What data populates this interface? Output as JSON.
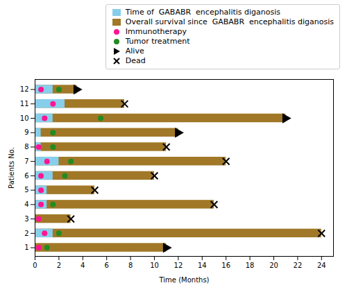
{
  "chart_data": {
    "type": "bar",
    "orientation": "horizontal",
    "xlabel": "Time (Months)",
    "ylabel": "Patients No.",
    "y": [
      1,
      2,
      3,
      4,
      5,
      6,
      7,
      8,
      9,
      10,
      11,
      12
    ],
    "xlim": [
      0,
      25
    ],
    "xticks": [
      0,
      2,
      4,
      6,
      8,
      10,
      12,
      14,
      16,
      18,
      20,
      22,
      24
    ],
    "ylim": [
      0.4,
      12.7
    ],
    "yticks": [
      1,
      2,
      3,
      4,
      5,
      6,
      7,
      8,
      9,
      10,
      11,
      12
    ],
    "grid": false,
    "legend": "upper right",
    "series": [
      {
        "name": "Time of  GABABR  encephalitis diganosis",
        "type": "bar",
        "color": "#87CEEB",
        "values": [
          0,
          1.5,
          0,
          1.0,
          1.0,
          1.5,
          2.0,
          0.5,
          0.5,
          1.5,
          2.5,
          1.5
        ]
      },
      {
        "name": "Overall survival since  GABABR  encephalitis diganosis",
        "type": "bar",
        "color": "#A07828",
        "values": [
          11,
          24,
          3,
          15,
          5,
          10,
          16,
          11,
          12,
          21,
          7.5,
          3.5
        ]
      },
      {
        "name": "Immunotherapy",
        "type": "scatter",
        "marker": "circle",
        "color": "#FF1493",
        "values": [
          0.3,
          0.8,
          0.3,
          0.5,
          0.5,
          0.5,
          1.0,
          0.3,
          null,
          0.8,
          1.5,
          0.5
        ]
      },
      {
        "name": "Tumor treatment",
        "type": "scatter",
        "marker": "circle",
        "color": "#228B22",
        "values": [
          1.0,
          2.0,
          null,
          1.5,
          null,
          2.5,
          3.0,
          1.5,
          1.5,
          5.5,
          null,
          2.0
        ]
      },
      {
        "name": "Alive",
        "type": "scatter",
        "marker": "triangle-right",
        "color": "#000000",
        "values": [
          11,
          null,
          null,
          null,
          null,
          null,
          null,
          null,
          12,
          21,
          null,
          3.5
        ]
      },
      {
        "name": "Dead",
        "type": "scatter",
        "marker": "x",
        "color": "#000000",
        "values": [
          null,
          24,
          3,
          15,
          5,
          10,
          16,
          11,
          null,
          null,
          7.5,
          null
        ]
      }
    ]
  }
}
